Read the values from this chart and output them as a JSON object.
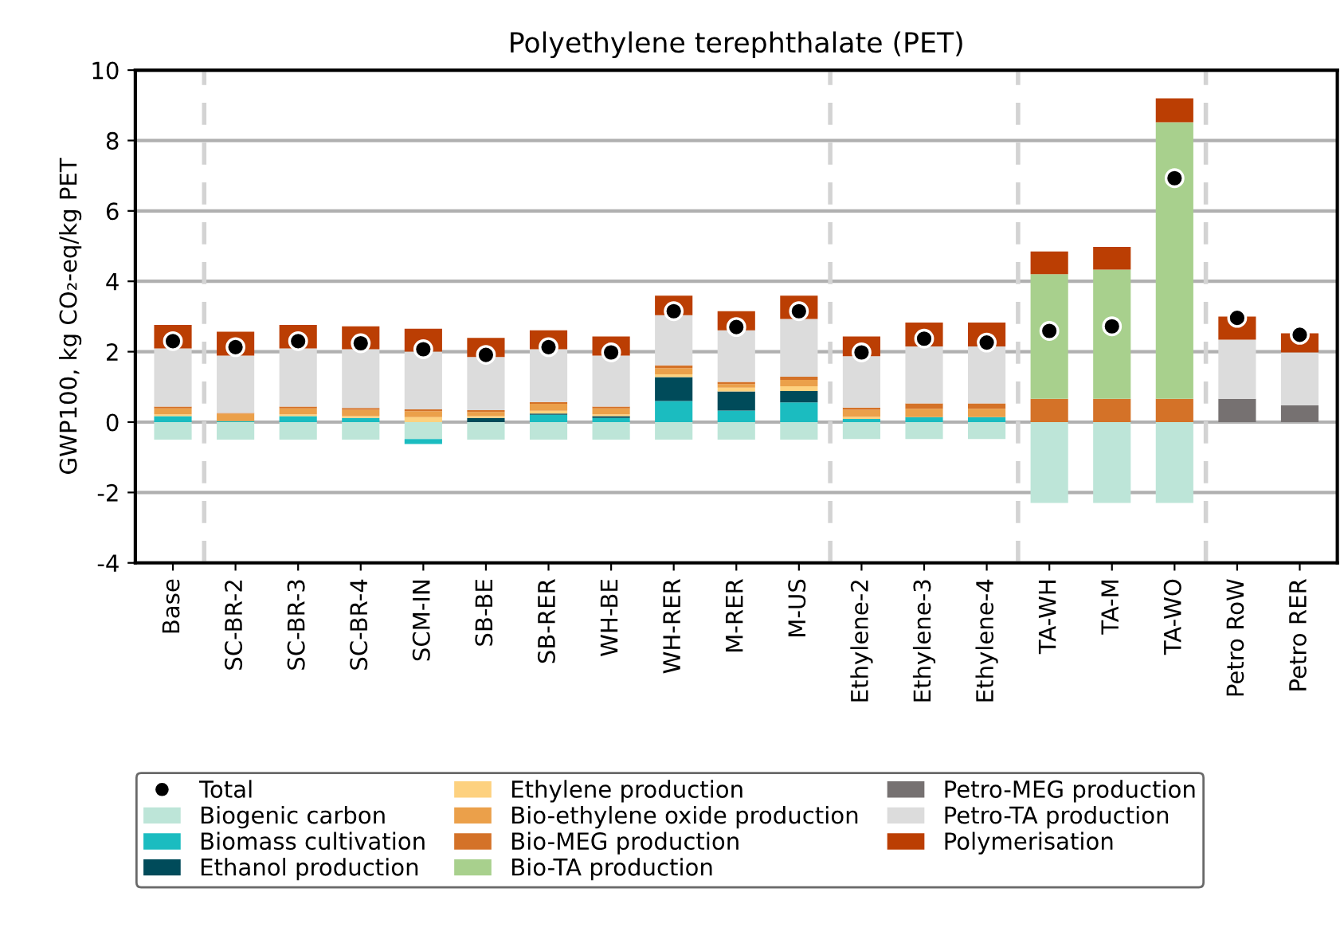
{
  "chart_data": {
    "type": "bar",
    "stacked": true,
    "title": "Polyethylene terephthalate (PET)",
    "ylabel": "GWP100, kg CO₂-eq/kg PET",
    "categories": [
      "Base",
      "SC-BR-2",
      "SC-BR-3",
      "SC-BR-4",
      "SCM-IN",
      "SB-BE",
      "SB-RER",
      "WH-BE",
      "WH-RER",
      "M-RER",
      "M-US",
      "Ethylene-2",
      "Ethylene-3",
      "Ethylene-4",
      "TA-WH",
      "TA-M",
      "TA-WO",
      "Petro RoW",
      "Petro RER"
    ],
    "series": [
      {
        "name": "Biogenic carbon",
        "color": "#bde5d8",
        "values": [
          -0.5,
          -0.5,
          -0.5,
          -0.5,
          -0.48,
          -0.5,
          -0.5,
          -0.5,
          -0.5,
          -0.5,
          -0.5,
          -0.48,
          -0.48,
          -0.48,
          -2.3,
          -2.3,
          -2.3,
          0,
          0
        ]
      },
      {
        "name": "Biomass cultivation",
        "color": "#1bbcc0",
        "values": [
          0.17,
          0.03,
          0.17,
          0.12,
          -0.14,
          0,
          0.21,
          0.12,
          0.6,
          0.33,
          0.56,
          0.09,
          0.14,
          0.14,
          0,
          0,
          0,
          0,
          0
        ]
      },
      {
        "name": "Ethanol production",
        "color": "#004b5a",
        "values": [
          0,
          0,
          0,
          0,
          0,
          0.12,
          0.03,
          0.05,
          0.68,
          0.54,
          0.32,
          0,
          0,
          0,
          0,
          0,
          0,
          0,
          0
        ]
      },
      {
        "name": "Ethylene production",
        "color": "#fdd17f",
        "values": [
          0.05,
          0,
          0.05,
          0.05,
          0.14,
          0.05,
          0.08,
          0.05,
          0.08,
          0.11,
          0.14,
          0.06,
          0,
          0,
          0,
          0,
          0,
          0,
          0
        ]
      },
      {
        "name": "Bio-ethylene oxide production",
        "color": "#eba04a",
        "values": [
          0.17,
          0.21,
          0.17,
          0.18,
          0.17,
          0.12,
          0.2,
          0.17,
          0.17,
          0.1,
          0.18,
          0.2,
          0.24,
          0.24,
          0,
          0,
          0,
          0,
          0
        ]
      },
      {
        "name": "Bio-MEG production",
        "color": "#d47228",
        "values": [
          0.05,
          0.02,
          0.05,
          0.05,
          0.05,
          0.05,
          0.05,
          0.05,
          0.08,
          0.06,
          0.09,
          0.06,
          0.15,
          0.15,
          0.66,
          0.66,
          0.66,
          0,
          0
        ]
      },
      {
        "name": "Bio-TA production",
        "color": "#a8d08d",
        "values": [
          0,
          0,
          0,
          0,
          0,
          0,
          0,
          0,
          0,
          0,
          0,
          0,
          0,
          0,
          3.54,
          3.67,
          7.86,
          0,
          0
        ]
      },
      {
        "name": "Petro-MEG production",
        "color": "#767171",
        "values": [
          0,
          0,
          0,
          0,
          0,
          0,
          0,
          0,
          0,
          0,
          0,
          0,
          0,
          0,
          0,
          0,
          0,
          0.66,
          0.48
        ]
      },
      {
        "name": "Petro-TA production",
        "color": "#dcdcdc",
        "values": [
          1.65,
          1.63,
          1.65,
          1.67,
          1.64,
          1.51,
          1.5,
          1.45,
          1.43,
          1.47,
          1.64,
          1.46,
          1.62,
          1.62,
          0,
          0,
          0,
          1.68,
          1.5
        ]
      },
      {
        "name": "Polymerisation",
        "color": "#bb3e03",
        "values": [
          0.67,
          0.68,
          0.67,
          0.65,
          0.65,
          0.54,
          0.54,
          0.54,
          0.55,
          0.54,
          0.66,
          0.56,
          0.68,
          0.68,
          0.65,
          0.65,
          0.68,
          0.66,
          0.54
        ]
      },
      {
        "name": "Total",
        "type": "scatter",
        "marker": "circle",
        "color": "#000000",
        "x": [
          "Base",
          "SC-BR-2",
          "SC-BR-3",
          "SC-BR-4",
          "SCM-IN",
          "SB-BE",
          "SB-RER",
          "WH-BE",
          "WH-RER",
          "M-RER",
          "M-US",
          "Ethylene-2",
          "Ethylene-3",
          "Ethylene-4",
          "TA-WH",
          "TA-M",
          "TA-WO",
          "Petro RoW",
          "Petro RER"
        ],
        "values": [
          2.3,
          2.13,
          2.3,
          2.24,
          2.07,
          1.91,
          2.13,
          1.98,
          3.15,
          2.7,
          3.15,
          1.98,
          2.37,
          2.26,
          2.59,
          2.72,
          6.93,
          2.96,
          2.48
        ]
      }
    ],
    "ylim": [
      -4,
      10
    ],
    "yticks": [
      -4,
      -2,
      0,
      2,
      4,
      6,
      8,
      10
    ],
    "grid": "y",
    "legend": "bottom"
  }
}
